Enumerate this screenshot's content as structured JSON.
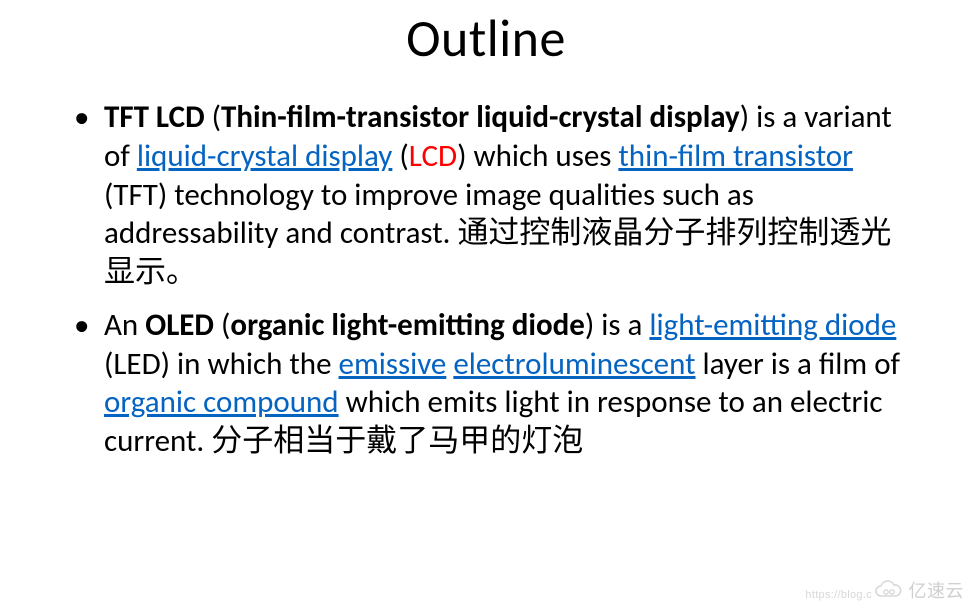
{
  "title": "Outline",
  "bullets": [
    {
      "runs": [
        {
          "t": "TFT LCD",
          "b": true
        },
        {
          "t": " ("
        },
        {
          "t": "Thin-film-transistor liquid-crystal display",
          "b": true
        },
        {
          "t": ") is a variant of "
        },
        {
          "t": "liquid-crystal display",
          "link": true
        },
        {
          "t": " ("
        },
        {
          "t": "LCD",
          "red": true
        },
        {
          "t": ") which uses "
        },
        {
          "t": "thin-film transistor",
          "link": true
        },
        {
          "t": " (TFT) technology to improve image qualities such as addressability and contrast. "
        },
        {
          "t": "通过控制液晶分子排列控制透光显示。",
          "cjk": true
        }
      ]
    },
    {
      "runs": [
        {
          "t": "An "
        },
        {
          "t": "OLED",
          "b": true
        },
        {
          "t": " ("
        },
        {
          "t": "organic light-emitting diode",
          "b": true
        },
        {
          "t": ") is a "
        },
        {
          "t": "light-emitting diode",
          "link": true
        },
        {
          "t": " (LED) in which the "
        },
        {
          "t": "emissive",
          "link": true
        },
        {
          "t": " "
        },
        {
          "t": "electroluminescent",
          "link": true
        },
        {
          "t": " layer is a film of "
        },
        {
          "t": "organic compound",
          "link": true
        },
        {
          "t": " which emits light in response to an electric current. "
        },
        {
          "t": "分子相当于戴了马甲的灯泡",
          "cjk": true
        }
      ]
    }
  ],
  "watermark": {
    "text": "亿速云",
    "url": "https://blog.c"
  },
  "colors": {
    "link": "#0563c1",
    "red": "#ff0000",
    "text": "#000000",
    "background": "#ffffff"
  }
}
